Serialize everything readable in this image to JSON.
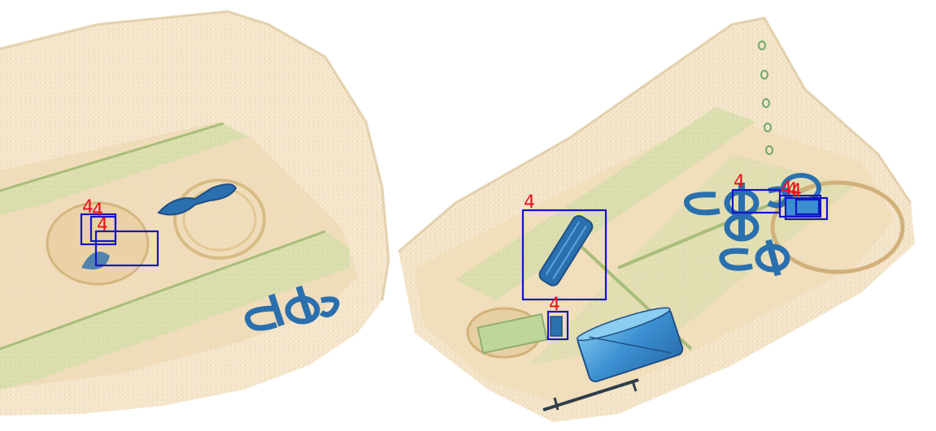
{
  "image": {
    "palette": {
      "organic_light": "#f3e1c2",
      "organic_mid": "#e9cf9f",
      "organic_edge": "#d8ba84",
      "mixed_green": "#bcd39a",
      "green_edge": "#8fae6c",
      "metal_blue": "#2a6fae",
      "metal_dark": "#1f4f86",
      "metal_light": "#58a6dd"
    },
    "detection_style": {
      "box_color": "#1414c8",
      "label_color": "#e8111b"
    }
  },
  "detections": [
    {
      "label": "4"
    },
    {
      "label": "4"
    },
    {
      "label": "4"
    },
    {
      "label": "4"
    },
    {
      "label": "4"
    },
    {
      "label": "4"
    },
    {
      "label": "4"
    },
    {
      "label": "4"
    },
    {
      "label": "4"
    }
  ]
}
